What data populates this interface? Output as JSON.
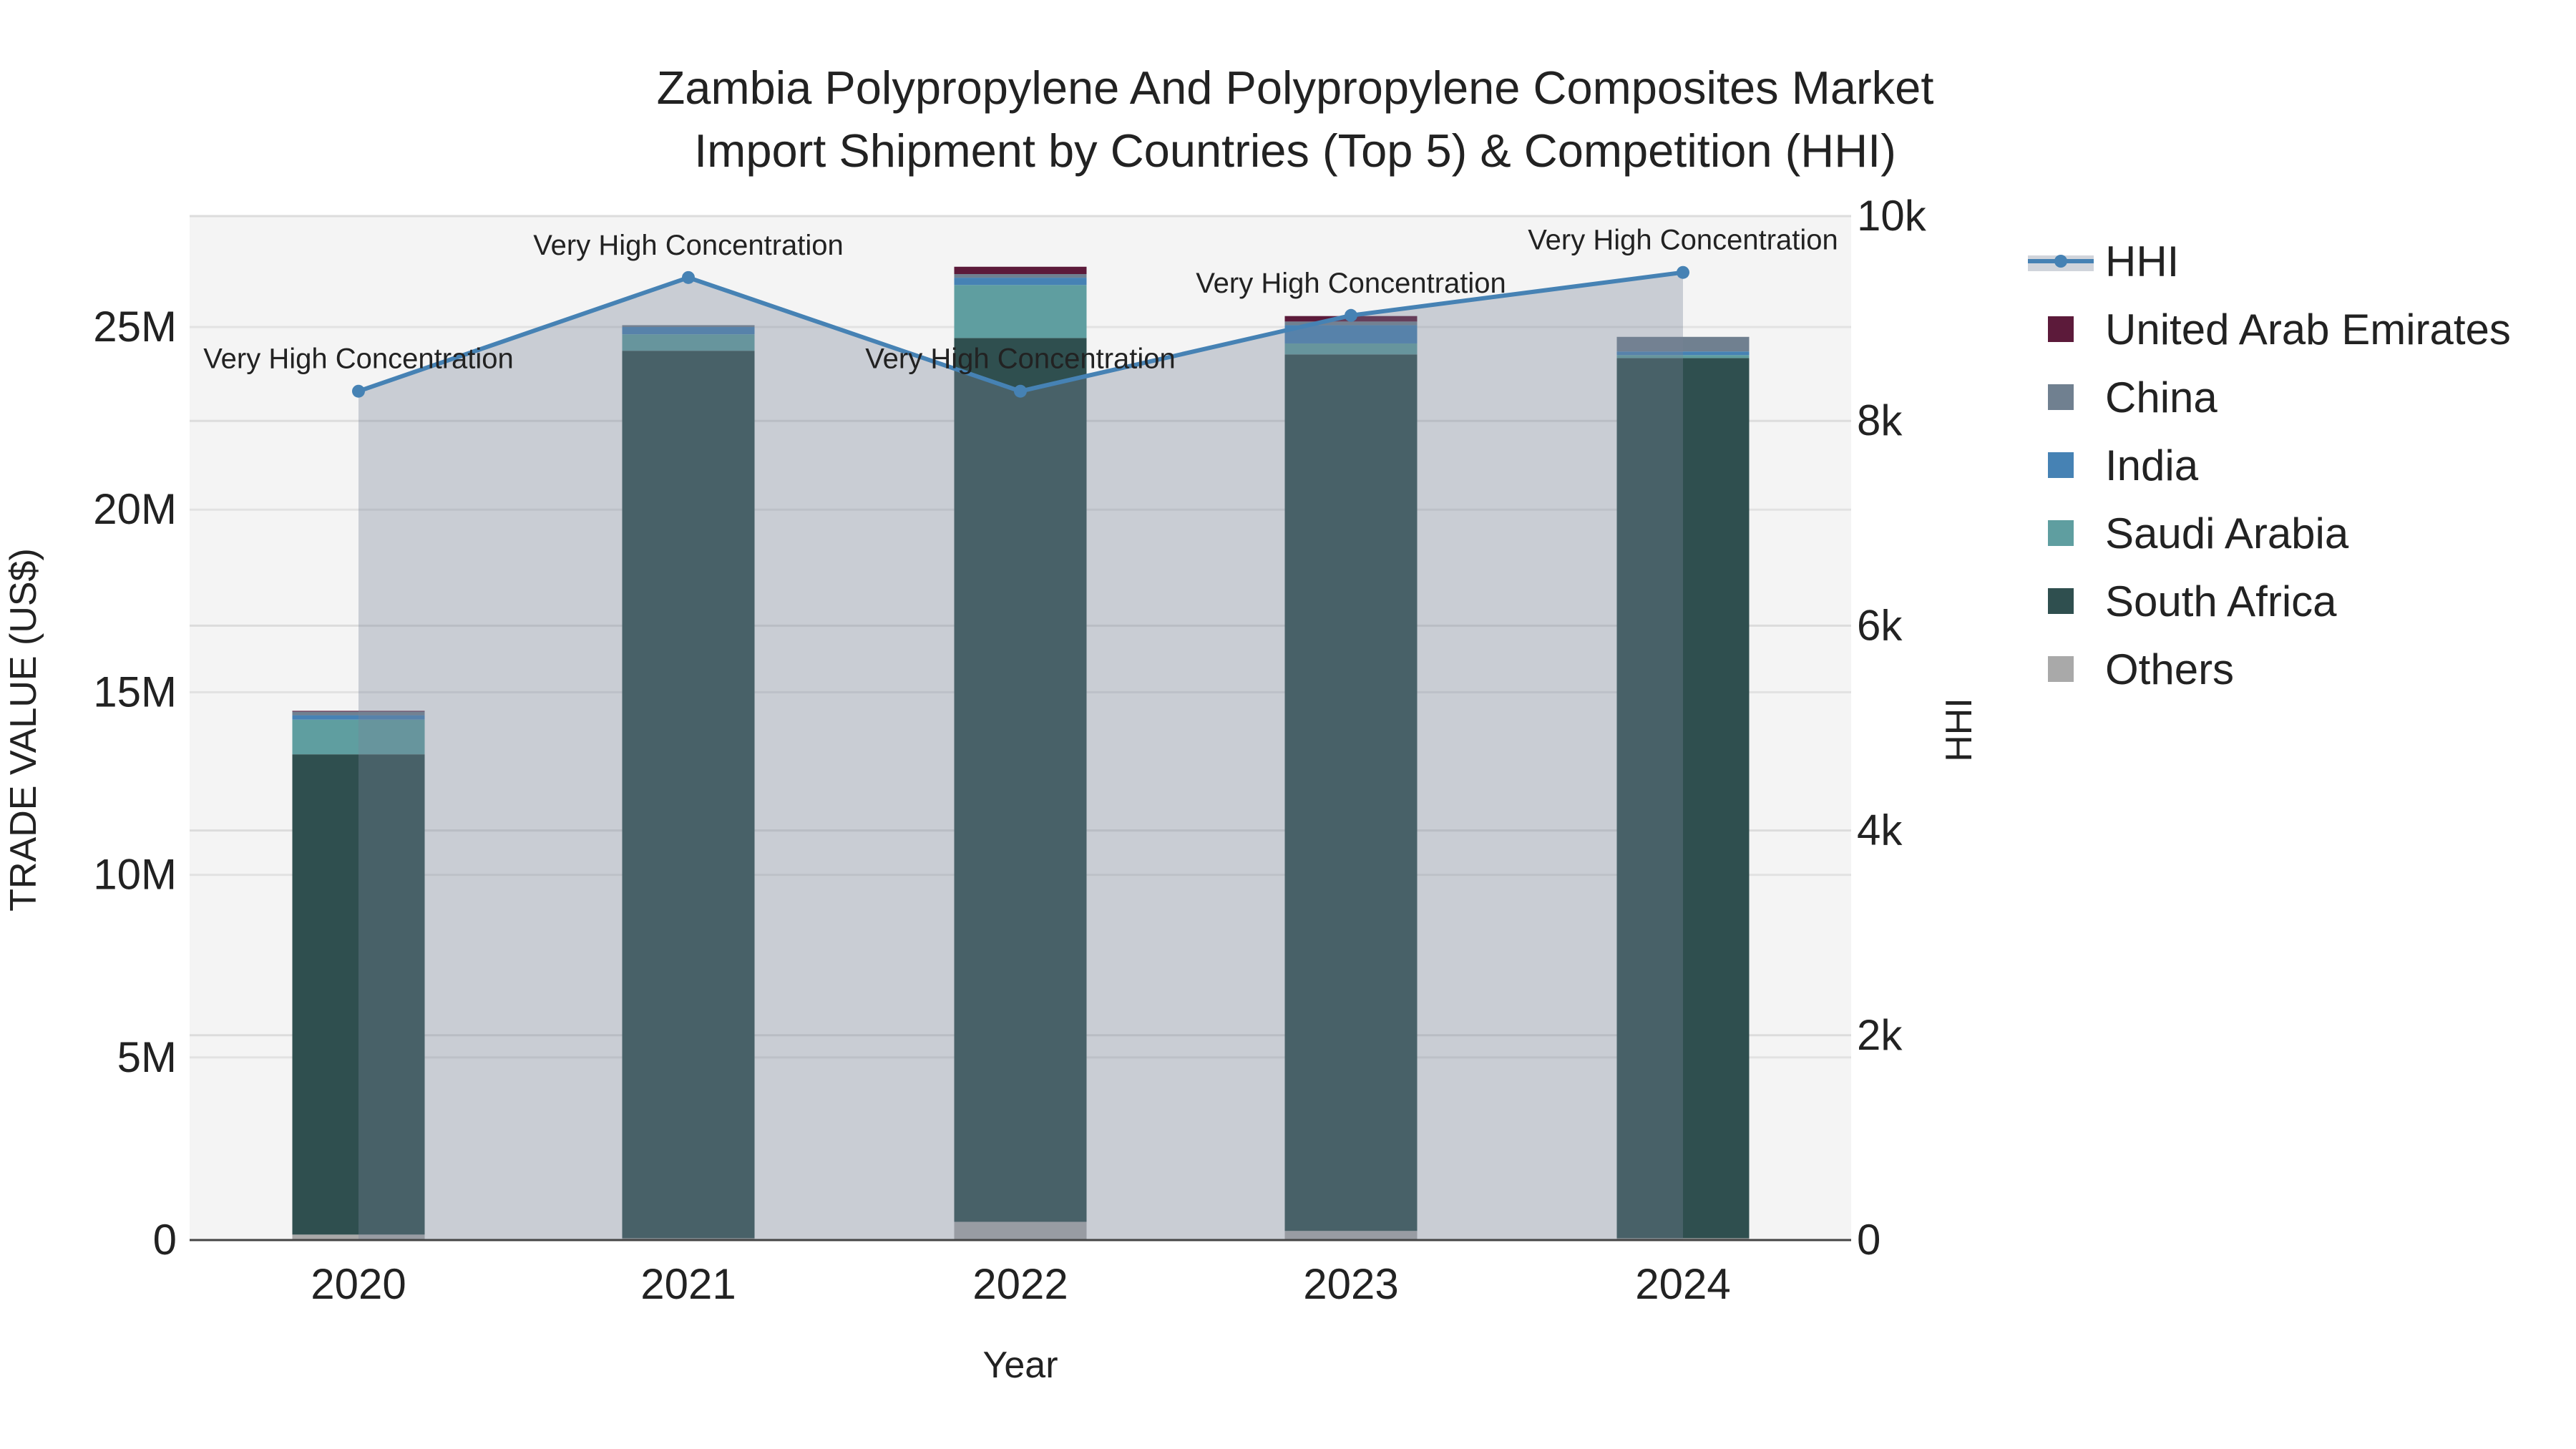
{
  "chart_data": {
    "type": "bar",
    "title_line1": "Zambia Polypropylene And Polypropylene Composites Market",
    "title_line2": "Import Shipment by Countries (Top 5) & Competition (HHI)",
    "xlabel": "Year",
    "ylabel": "TRADE VALUE (US$)",
    "y2label": "HHI",
    "categories": [
      "2020",
      "2021",
      "2022",
      "2023",
      "2024"
    ],
    "ylim": [
      0,
      28
    ],
    "y_unit": "M",
    "yticks": [
      0,
      5,
      10,
      15,
      20,
      25
    ],
    "ytick_labels": [
      "0",
      "5M",
      "10M",
      "15M",
      "20M",
      "25M"
    ],
    "y2lim": [
      0,
      10000
    ],
    "y2ticks": [
      0,
      2000,
      4000,
      6000,
      8000,
      10000
    ],
    "y2tick_labels": [
      "0",
      "2k",
      "4k",
      "6k",
      "8k",
      "10k"
    ],
    "series": [
      {
        "name": "Others",
        "color": "#A9A9A9",
        "values": [
          0.15,
          0.05,
          0.5,
          0.25,
          0.05
        ]
      },
      {
        "name": "South Africa",
        "color": "#2F4F4F",
        "values": [
          13.15,
          24.3,
          24.2,
          24.0,
          24.1
        ]
      },
      {
        "name": "Saudi Arabia",
        "color": "#5F9EA0",
        "values": [
          0.95,
          0.45,
          1.45,
          0.3,
          0.08
        ]
      },
      {
        "name": "India",
        "color": "#4682B4",
        "values": [
          0.12,
          0.2,
          0.2,
          0.5,
          0.1
        ]
      },
      {
        "name": "China",
        "color": "#708090",
        "values": [
          0.1,
          0.05,
          0.1,
          0.1,
          0.4
        ]
      },
      {
        "name": "United Arab Emirates",
        "color": "#5C1A3A",
        "values": [
          0.02,
          0.0,
          0.2,
          0.15,
          0.0
        ]
      }
    ],
    "hhi": {
      "name": "HHI",
      "color": "#4682B4",
      "values": [
        8290,
        9400,
        8290,
        9030,
        9450
      ],
      "annotations": [
        "Very High Concentration",
        "Very High Concentration",
        "Very High Concentration",
        "Very High Concentration",
        "Very High Concentration"
      ]
    },
    "legend_order": [
      "HHI",
      "United Arab Emirates",
      "China",
      "India",
      "Saudi Arabia",
      "South Africa",
      "Others"
    ],
    "legend_placement": "right",
    "grid": true
  }
}
